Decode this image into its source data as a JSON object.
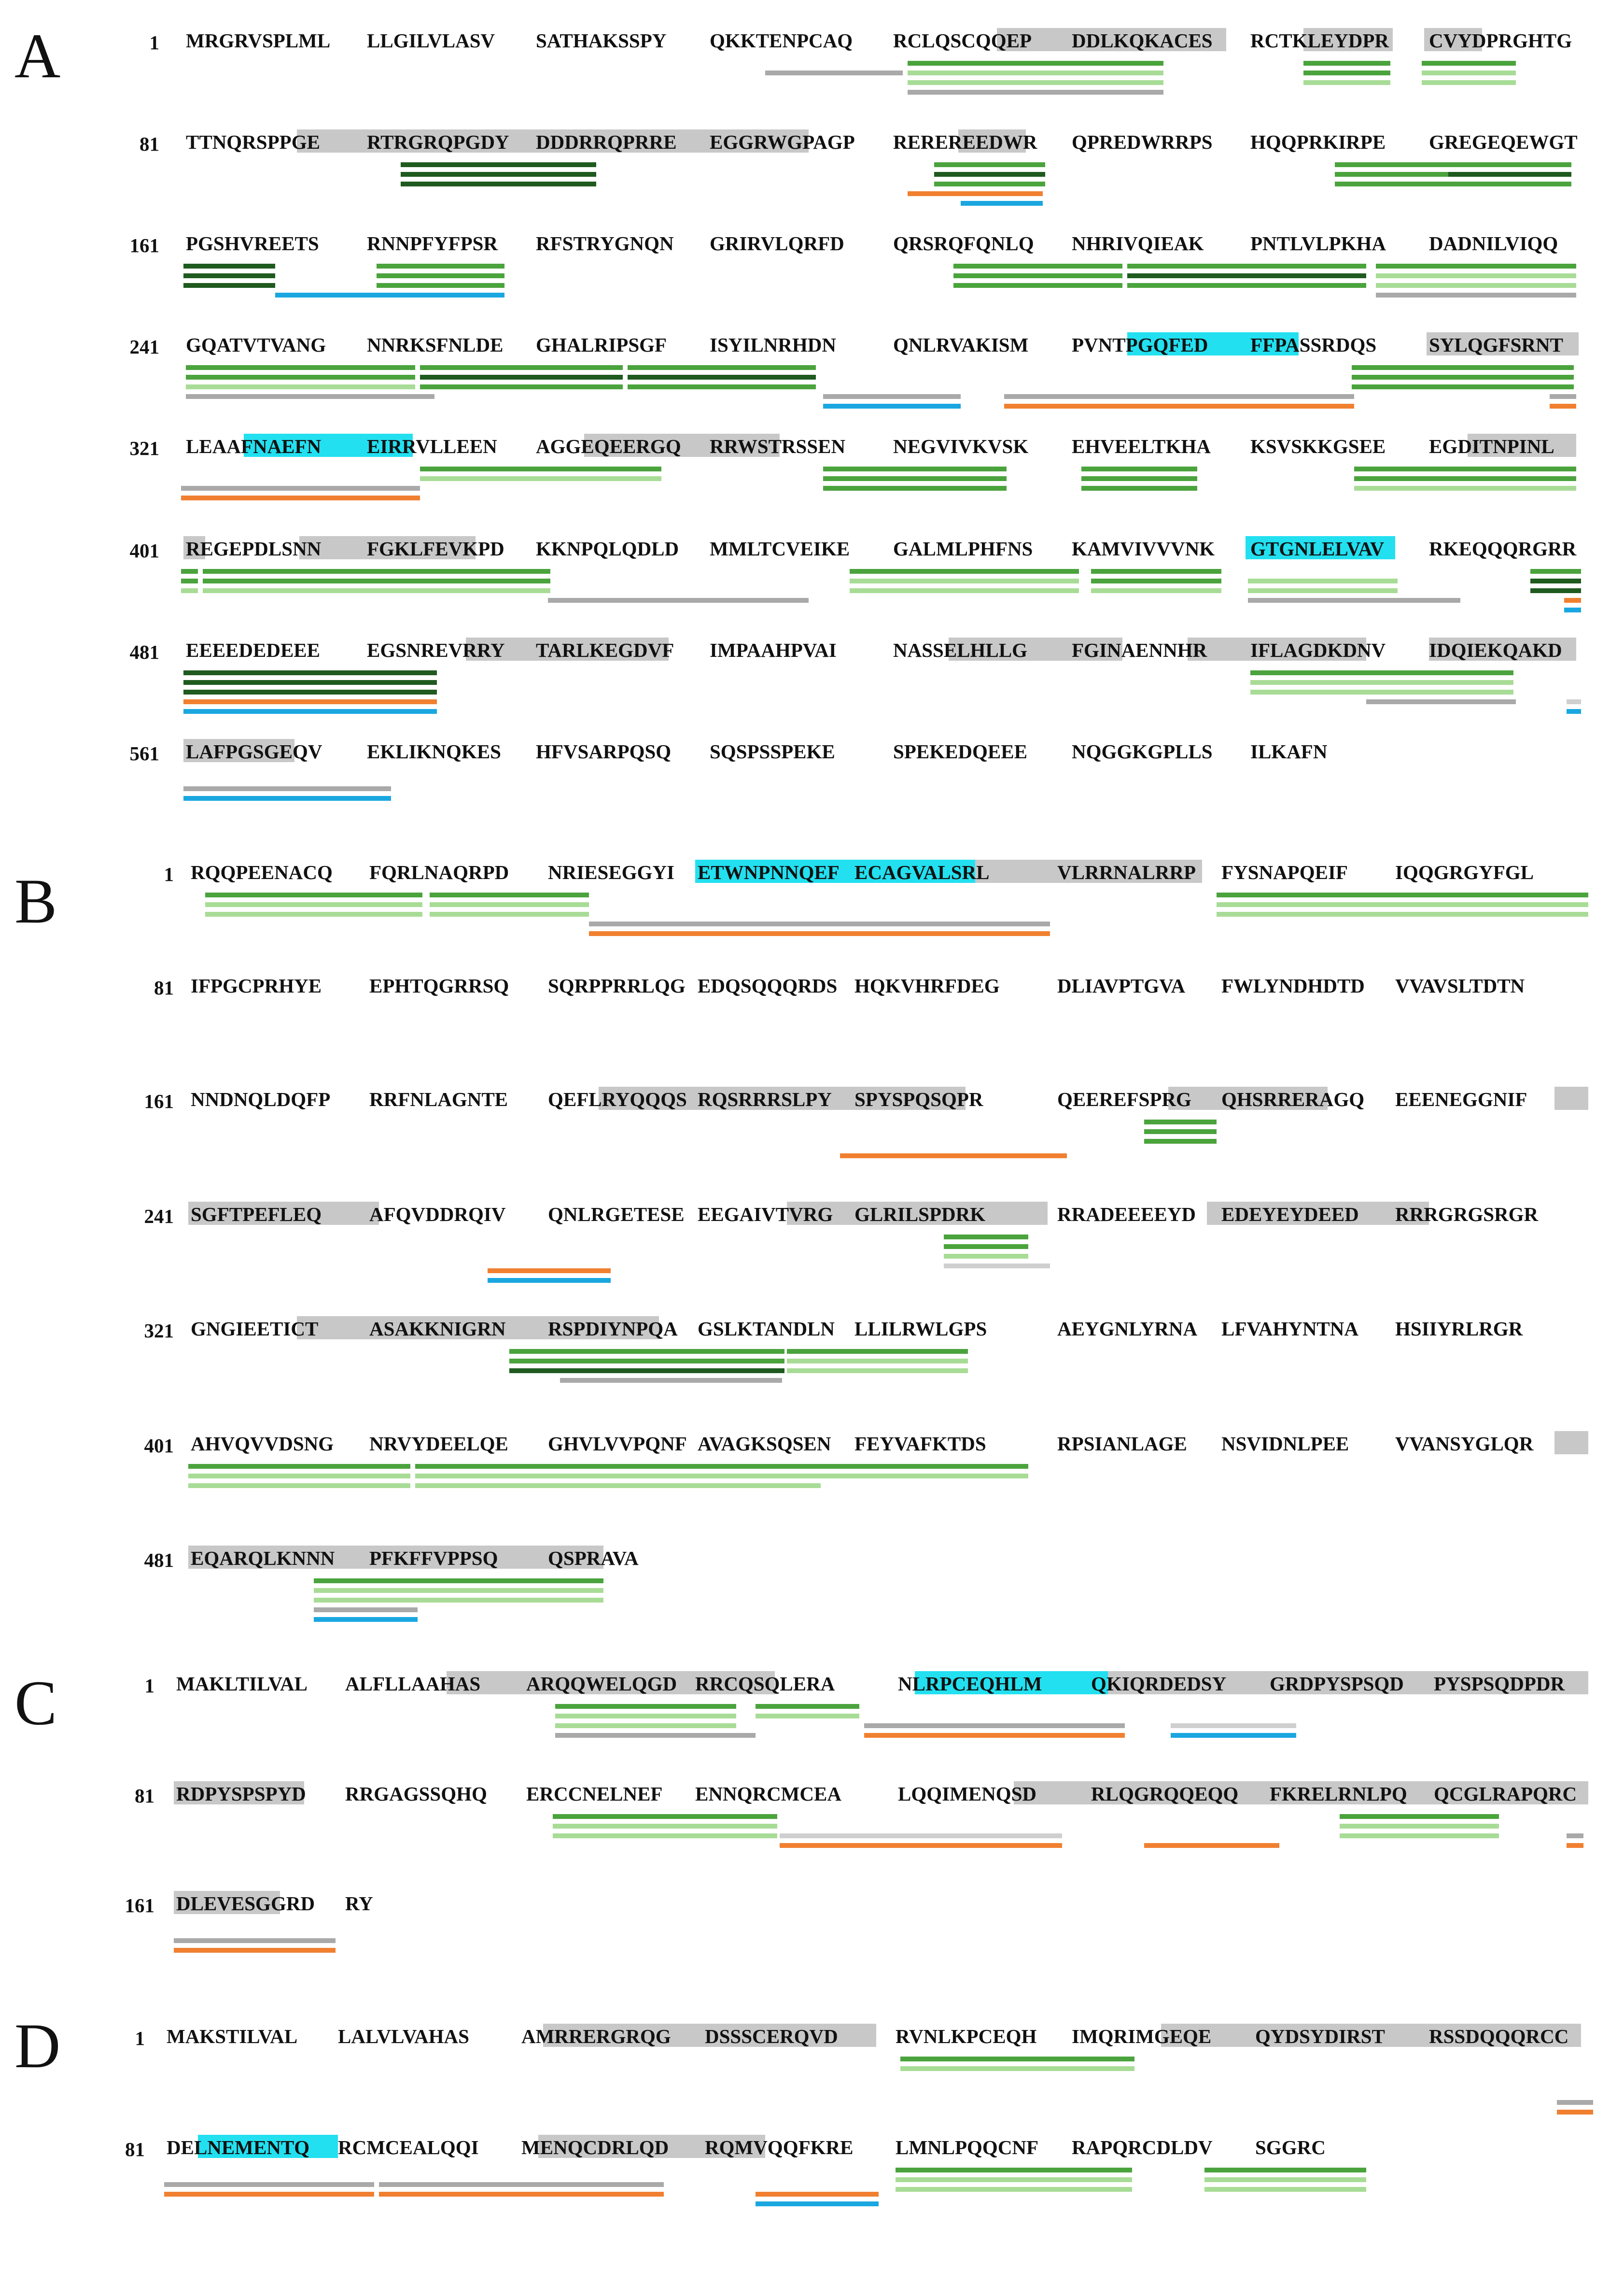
{
  "colors": {
    "green": "#4aa33c",
    "dark_green": "#1f5a1f",
    "light_green": "#a8dc96",
    "gray": "#a9a9a9",
    "light_gray": "#cfcfcf",
    "orange": "#f08030",
    "blue": "#1aa7e0",
    "highlight_gray": "#c8c8c8",
    "highlight_cyan": "#22e0f0"
  },
  "panels": [
    {
      "letter": "A",
      "rows": [
        {
          "start": "1",
          "blocks": [
            "MRGRVSPLML",
            "LLGILVLASV",
            "SATHAKSSPY",
            "QKKTENPCAQ",
            "RCLQSCQQEP",
            "DDLKQKACES",
            "RCTKLEYDPR",
            "CVYDPRGHTG"
          ]
        },
        {
          "start": "81",
          "blocks": [
            "TTNQRSPPGE",
            "RTRGRQPGDY",
            "DDDRRQPRRE",
            "EGGRWGPAGP",
            "REREREEDWR",
            "QPREDWRRPS",
            "HQQPRKIRPE",
            "GREGEQEWGT"
          ]
        },
        {
          "start": "161",
          "blocks": [
            "PGSHVREETS",
            "RNNPFYFPSR",
            "RFSTRYGNQN",
            "GRIRVLQRFD",
            "QRSRQFQNLQ",
            "NHRIVQIEAK",
            "PNTLVLPKHA",
            "DADNILVIQQ"
          ]
        },
        {
          "start": "241",
          "blocks": [
            "GQATVTVANG",
            "NNRKSFNLDE",
            "GHALRIPSGF",
            "ISYILNRHDN",
            "QNLRVAKISM",
            "PVNTPGQFED",
            "FFPASSRDQS",
            "SYLQGFSRNT"
          ]
        },
        {
          "start": "321",
          "blocks": [
            "LEAAFNAEFN",
            "EIRRVLLEEN",
            "AGGEQEERGQ",
            "RRWSTRSSEN",
            "NEGVIVKVSK",
            "EHVEELTKHA",
            "KSVSKKGSEE",
            "EGDITNPINL"
          ]
        },
        {
          "start": "401",
          "blocks": [
            "REGEPDLSNN",
            "FGKLFEVKPD",
            "KKNPQLQDLD",
            "MMLTCVEIKE",
            "GALMLPHFNS",
            "KAMVIVVVNK",
            "GTGNLELVAV",
            "RKEQQQRGRR"
          ]
        },
        {
          "start": "481",
          "blocks": [
            "EEEEDEDEEE",
            "EGSNREVRRY",
            "TARLKEGDVF",
            "IMPAAHPVAI",
            "NASSELHLLG",
            "FGINAENNHR",
            "IFLAGDKDNV",
            "IDQIEKQAKD"
          ]
        },
        {
          "start": "561",
          "blocks": [
            "LAFPGSGEQV",
            "EKLIKNQKES",
            "HFVSARPQSQ",
            "SQSPSSPEKE",
            "SPEKEDQEEE",
            "NQGGKGPLLS",
            "ILKAFN"
          ]
        }
      ]
    },
    {
      "letter": "B",
      "rows": [
        {
          "start": "1",
          "blocks": [
            "RQQPEENACQ",
            "FQRLNAQRPD",
            "NRIESEGGYI",
            "ETWNPNNQEF",
            "ECAGVALSRL",
            "VLRRNALRRP",
            "FYSNAPQEIF",
            "IQQGRGYFGL"
          ]
        },
        {
          "start": "81",
          "blocks": [
            "IFPGCPRHYE",
            "EPHTQGRRSQ",
            "SQRPPRRLQG",
            "EDQSQQQRDS",
            "HQKVHRFDEG",
            "DLIAVPTGVA",
            "FWLYNDHDTD",
            "VVAVSLTDTN"
          ]
        },
        {
          "start": "161",
          "blocks": [
            "NNDNQLDQFP",
            "RRFNLAGNTE",
            "QEFLRYQQQS",
            "RQSRRRSLPY",
            "SPYSPQSQPR",
            "QEEREFSPRG",
            "QHSRRERAGQ",
            "EEENEGGNIF"
          ]
        },
        {
          "start": "241",
          "blocks": [
            "SGFTPEFLEQ",
            "AFQVDDRQIV",
            "QNLRGETESE",
            "EEGAIVTVRG",
            "GLRILSPDRK",
            "RRADEEEEYD",
            "EDEYEYDEED",
            "RRRGRGSRGR"
          ]
        },
        {
          "start": "321",
          "blocks": [
            "GNGIEETICT",
            "ASAKKNIGRN",
            "RSPDIYNPQA",
            "GSLKTANDLN",
            "LLILRWLGPS",
            "AEYGNLYRNA",
            "LFVAHYNTNA",
            "HSIIYRLRGR"
          ]
        },
        {
          "start": "401",
          "blocks": [
            "AHVQVVDSNG",
            "NRVYDEELQE",
            "GHVLVVPQNF",
            "AVAGKSQSEN",
            "FEYVAFKTDS",
            "RPSIANLAGE",
            "NSVIDNLPEE",
            "VVANSYGLQR"
          ]
        },
        {
          "start": "481",
          "blocks": [
            "EQARQLKNNN",
            "PFKFFVPPSQ",
            "QSPRAVA"
          ]
        }
      ]
    },
    {
      "letter": "C",
      "rows": [
        {
          "start": "1",
          "blocks": [
            "MAKLTILVAL",
            "ALFLLAAHAS",
            "ARQQWELQGD",
            "RRCQSQLERA",
            "NLRPCEQHLM",
            "QKIQRDEDSY",
            "GRDPYSPSQD",
            "PYSPSQDPDR"
          ]
        },
        {
          "start": "81",
          "blocks": [
            "RDPYSPSPYD",
            "RRGAGSSQHQ",
            "ERCCNELNEF",
            "ENNQRCMCEA",
            "LQQIMENQSD",
            "RLQGRQQEQQ",
            "FKRELRNLPQ",
            "QCGLRAPQRC"
          ]
        },
        {
          "start": "161",
          "blocks": [
            "DLEVESGGRD",
            "RY"
          ]
        }
      ]
    },
    {
      "letter": "D",
      "rows": [
        {
          "start": "1",
          "blocks": [
            "MAKSTILVAL",
            "LALVLVAHAS",
            "AMRRERGRQG",
            "DSSSCERQVD",
            "RVNLKPCEQH",
            "IMQRIMGEQE",
            "QYDSYDIRST",
            "RSSDQQQRCC"
          ]
        },
        {
          "start": "81",
          "blocks": [
            "DELNEMENTQ",
            "RCMCEALQQI",
            "MENQCDRLQD",
            "RQMVQQFKRE",
            "LMNLPQQCNF",
            "RAPQRCDLDV",
            "SGGRC"
          ]
        }
      ]
    }
  ]
}
